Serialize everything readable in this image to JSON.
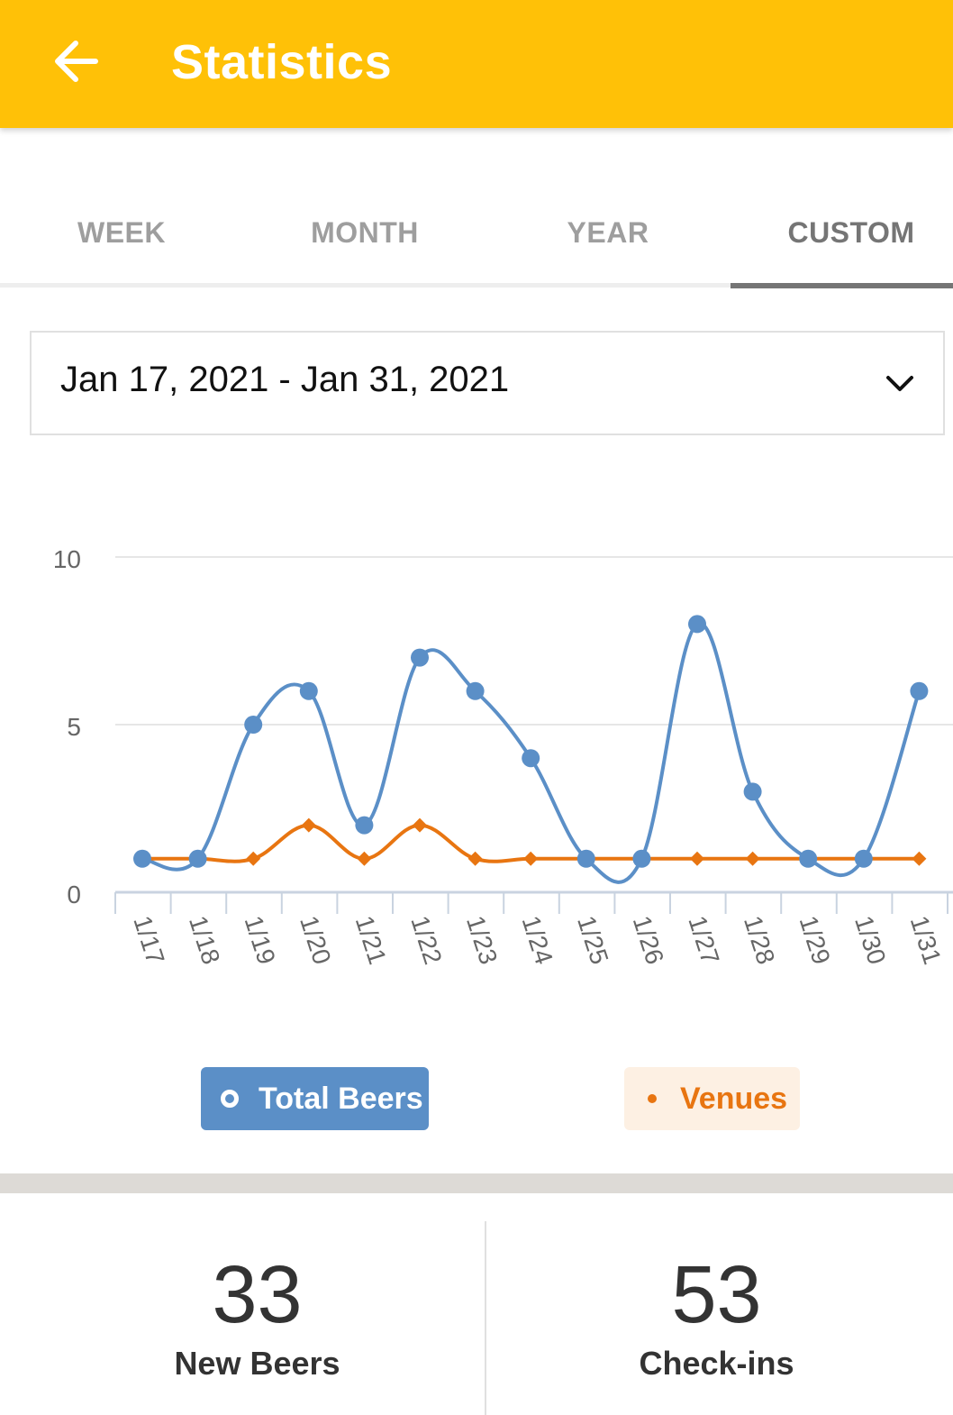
{
  "appbar": {
    "title": "Statistics",
    "back_icon": "arrow-left-icon"
  },
  "tabs": [
    {
      "label": "WEEK",
      "active": false
    },
    {
      "label": "MONTH",
      "active": false
    },
    {
      "label": "YEAR",
      "active": false
    },
    {
      "label": "CUSTOM",
      "active": true
    }
  ],
  "date_range": {
    "value": "Jan 17, 2021 - Jan 31, 2021",
    "icon": "chevron-down-icon"
  },
  "colors": {
    "accent": "#FFC107",
    "total_beers": "#5B8FC7",
    "venues": "#E87511"
  },
  "chart_data": {
    "type": "line",
    "categories": [
      "1/17",
      "1/18",
      "1/19",
      "1/20",
      "1/21",
      "1/22",
      "1/23",
      "1/24",
      "1/25",
      "1/26",
      "1/27",
      "1/28",
      "1/29",
      "1/30",
      "1/31"
    ],
    "series": [
      {
        "name": "Total Beers",
        "values": [
          1,
          1,
          5,
          6,
          2,
          7,
          6,
          4,
          1,
          1,
          8,
          3,
          1,
          1,
          6
        ]
      },
      {
        "name": "Venues",
        "values": [
          1,
          1,
          1,
          2,
          1,
          2,
          1,
          1,
          1,
          1,
          1,
          1,
          1,
          1,
          1
        ]
      }
    ],
    "yticks": [
      "0",
      "5",
      "10"
    ],
    "ylim": [
      0,
      10
    ],
    "grid": true,
    "legend": "bottom"
  },
  "legend": {
    "total_beers": "Total Beers",
    "venues": "Venues"
  },
  "stats": [
    {
      "value": "33",
      "label": "New Beers"
    },
    {
      "value": "53",
      "label": "Check-ins"
    }
  ]
}
